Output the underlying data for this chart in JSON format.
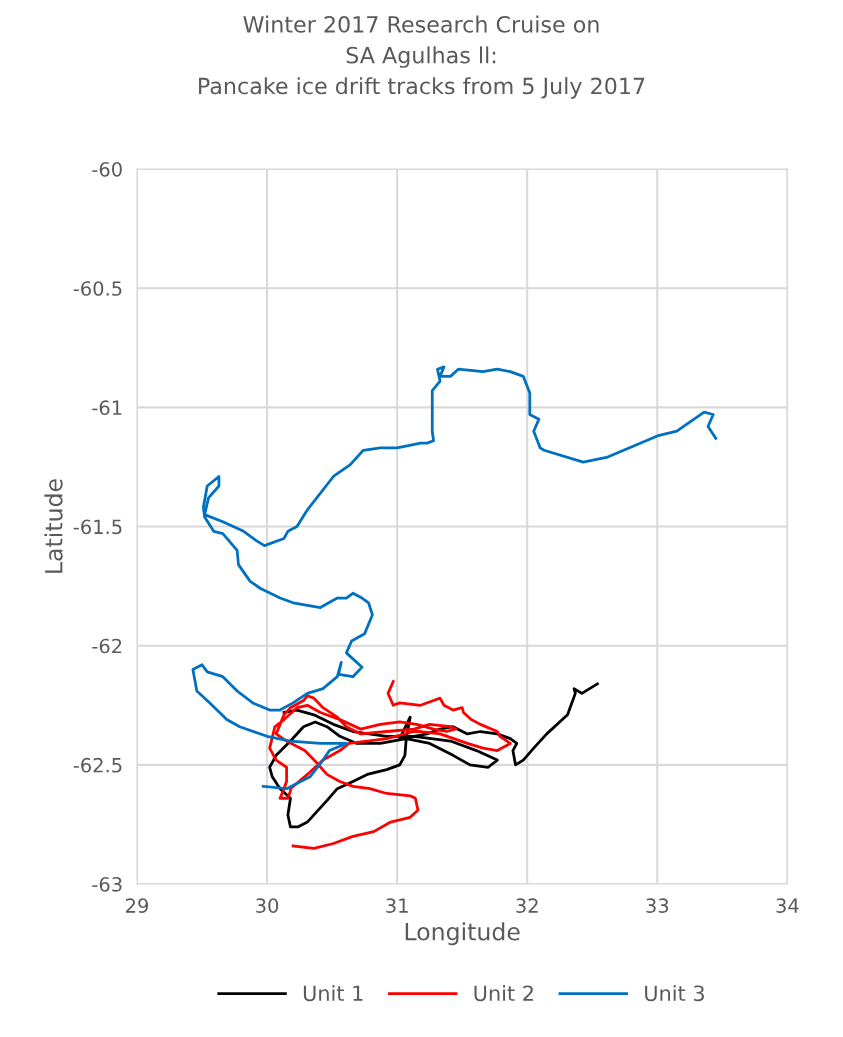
{
  "chart_data": {
    "type": "line",
    "title": "Winter 2017 Research Cruise on\nSA Agulhas ll:\nPancake ice drift tracks from 5 July 2017",
    "xlabel": "Longitude",
    "ylabel": "Latitude",
    "xlim": [
      29,
      34
    ],
    "xticks": [
      29,
      30,
      31,
      32,
      33,
      34
    ],
    "ylim": [
      -63,
      -60
    ],
    "yticks": [
      -60,
      -60.5,
      -61,
      -61.5,
      -62,
      -62.5,
      -63
    ],
    "grid": true,
    "legend": "bottom",
    "marker": "none",
    "line_style": "solid",
    "series": [
      {
        "name": "Unit 1",
        "color": "#000000",
        "x": [
          32.54,
          32.42,
          32.36,
          32.37,
          32.31,
          32.15,
          32.05,
          31.97,
          31.91,
          31.89,
          31.92,
          31.87,
          31.77,
          31.64,
          31.54,
          31.43,
          31.33,
          31.23,
          31.13,
          31.02,
          31.1,
          31.07,
          31.06,
          31.02,
          30.92,
          30.77,
          30.66,
          30.54,
          30.46,
          30.36,
          30.31,
          30.24,
          30.18,
          30.16,
          30.18,
          30.1,
          30.04,
          30.02,
          30.07,
          30.18,
          30.28,
          30.37,
          30.46,
          30.56,
          30.69,
          30.87,
          31.07,
          31.25,
          31.43,
          31.56,
          31.7,
          31.77,
          31.61,
          31.41,
          31.13,
          30.92,
          30.66,
          30.51,
          30.36,
          30.23,
          30.13
        ],
        "values": [
          -62.16,
          -62.2,
          -62.18,
          -62.2,
          -62.29,
          -62.37,
          -62.43,
          -62.48,
          -62.5,
          -62.44,
          -62.41,
          -62.39,
          -62.37,
          -62.36,
          -62.37,
          -62.34,
          -62.35,
          -62.37,
          -62.38,
          -62.39,
          -62.3,
          -62.39,
          -62.46,
          -62.5,
          -62.52,
          -62.54,
          -62.57,
          -62.6,
          -62.65,
          -62.71,
          -62.74,
          -62.76,
          -62.76,
          -62.71,
          -62.64,
          -62.6,
          -62.55,
          -62.51,
          -62.46,
          -62.4,
          -62.34,
          -62.32,
          -62.34,
          -62.38,
          -62.41,
          -62.41,
          -62.39,
          -62.41,
          -62.46,
          -62.5,
          -62.51,
          -62.48,
          -62.44,
          -62.4,
          -62.38,
          -62.38,
          -62.36,
          -62.33,
          -62.29,
          -62.27,
          -62.28
        ]
      },
      {
        "name": "Unit 2",
        "color": "#ff0000",
        "x": [
          30.2,
          30.36,
          30.51,
          30.66,
          30.82,
          30.95,
          31.1,
          31.16,
          31.14,
          31.1,
          30.92,
          30.79,
          30.66,
          30.56,
          30.46,
          30.38,
          30.29,
          30.15,
          30.07,
          30.1,
          30.13,
          30.18,
          30.28,
          30.31,
          30.36,
          30.43,
          30.54,
          30.61,
          30.72,
          30.92,
          31.13,
          31.25,
          31.41,
          31.45,
          31.38,
          31.28,
          31.15,
          31.02,
          30.87,
          30.72,
          30.56,
          30.41,
          30.31,
          30.23,
          30.13,
          30.06,
          30.02,
          30.07,
          30.15,
          30.15,
          30.13,
          30.1,
          30.16,
          30.18,
          30.18,
          30.31,
          30.43,
          30.56,
          30.63,
          30.77,
          30.92,
          31.13,
          31.18,
          31.33,
          31.54,
          31.66,
          31.77,
          31.87,
          31.79,
          31.77,
          31.64,
          31.57,
          31.51,
          31.5,
          31.43,
          31.36,
          31.33,
          31.28,
          31.18,
          31.02,
          30.97,
          30.93,
          30.97
        ],
        "values": [
          -62.84,
          -62.85,
          -62.83,
          -62.8,
          -62.78,
          -62.74,
          -62.72,
          -62.69,
          -62.64,
          -62.63,
          -62.62,
          -62.6,
          -62.59,
          -62.57,
          -62.54,
          -62.49,
          -62.44,
          -62.4,
          -62.37,
          -62.33,
          -62.29,
          -62.26,
          -62.23,
          -62.21,
          -62.22,
          -62.26,
          -62.3,
          -62.34,
          -62.37,
          -62.36,
          -62.35,
          -62.33,
          -62.34,
          -62.35,
          -62.36,
          -62.35,
          -62.33,
          -62.32,
          -62.33,
          -62.35,
          -62.31,
          -62.28,
          -62.25,
          -62.26,
          -62.31,
          -62.34,
          -62.43,
          -62.48,
          -62.51,
          -62.57,
          -62.6,
          -62.64,
          -62.64,
          -62.61,
          -62.6,
          -62.54,
          -62.48,
          -62.44,
          -62.41,
          -62.4,
          -62.39,
          -62.36,
          -62.36,
          -62.37,
          -62.41,
          -62.43,
          -62.44,
          -62.41,
          -62.38,
          -62.36,
          -62.33,
          -62.31,
          -62.28,
          -62.26,
          -62.27,
          -62.25,
          -62.22,
          -62.23,
          -62.25,
          -62.24,
          -62.25,
          -62.2,
          -62.15
        ]
      },
      {
        "name": "Unit 3",
        "color": "#0070c0",
        "x": [
          29.97,
          30.15,
          30.33,
          30.43,
          30.48,
          30.61,
          30.41,
          30.18,
          30.0,
          29.79,
          29.69,
          29.56,
          29.46,
          29.43,
          29.5,
          29.54,
          29.66,
          29.77,
          29.89,
          30.02,
          30.1,
          30.2,
          30.31,
          30.43,
          30.54,
          30.57,
          30.55,
          30.66,
          30.73,
          30.61,
          30.65,
          30.75,
          30.78,
          30.81,
          30.78,
          30.73,
          30.66,
          30.61,
          30.54,
          30.41,
          30.2,
          30.1,
          29.95,
          29.87,
          29.78,
          29.77,
          29.66,
          29.59,
          29.52,
          29.51,
          29.54,
          29.63,
          29.63,
          29.55,
          29.52,
          29.66,
          29.82,
          29.92,
          29.98,
          30.13,
          30.16,
          30.23,
          30.31,
          30.51,
          30.64,
          30.74,
          30.87,
          31.0,
          31.18,
          31.23,
          31.28,
          31.27,
          31.27,
          31.33,
          31.31,
          31.36,
          31.33,
          31.41,
          31.47,
          31.66,
          31.77,
          31.87,
          31.97,
          32.02,
          32.02,
          32.09,
          32.05,
          32.1,
          32.13,
          32.43,
          32.61,
          33.0,
          33.15,
          33.36,
          33.43,
          33.39,
          33.45
        ],
        "values": [
          -62.59,
          -62.6,
          -62.55,
          -62.48,
          -62.44,
          -62.41,
          -62.41,
          -62.4,
          -62.38,
          -62.34,
          -62.31,
          -62.24,
          -62.19,
          -62.1,
          -62.08,
          -62.11,
          -62.13,
          -62.19,
          -62.24,
          -62.27,
          -62.27,
          -62.24,
          -62.2,
          -62.18,
          -62.13,
          -62.07,
          -62.12,
          -62.13,
          -62.09,
          -62.03,
          -61.98,
          -61.95,
          -61.91,
          -61.87,
          -61.82,
          -61.8,
          -61.78,
          -61.8,
          -61.8,
          -61.84,
          -61.82,
          -61.8,
          -61.76,
          -61.73,
          -61.66,
          -61.6,
          -61.53,
          -61.52,
          -61.46,
          -61.42,
          -61.33,
          -61.29,
          -61.33,
          -61.38,
          -61.45,
          -61.48,
          -61.52,
          -61.56,
          -61.58,
          -61.55,
          -61.52,
          -61.5,
          -61.43,
          -61.29,
          -61.24,
          -61.18,
          -61.17,
          -61.17,
          -61.15,
          -61.15,
          -61.14,
          -61.1,
          -60.93,
          -60.89,
          -60.84,
          -60.83,
          -60.87,
          -60.87,
          -60.84,
          -60.85,
          -60.84,
          -60.85,
          -60.87,
          -60.94,
          -61.03,
          -61.05,
          -61.1,
          -61.17,
          -61.18,
          -61.23,
          -61.21,
          -61.12,
          -61.1,
          -61.02,
          -61.03,
          -61.08,
          -61.13
        ]
      }
    ]
  }
}
